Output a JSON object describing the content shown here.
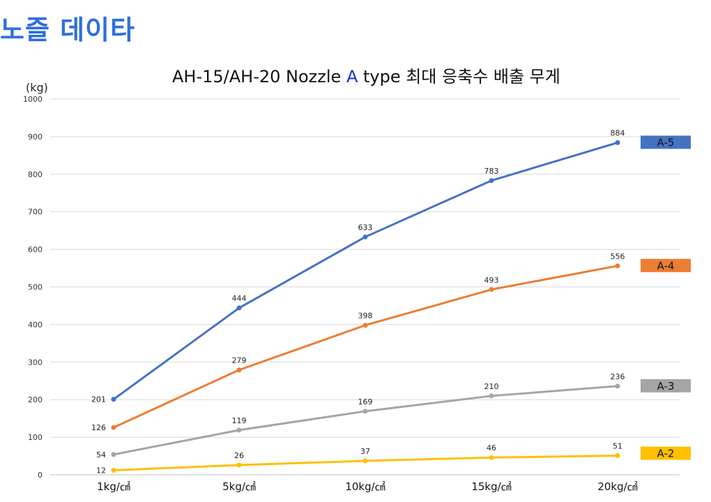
{
  "page": {
    "heading": "노즐 데이타"
  },
  "chart_data": {
    "type": "line",
    "title": {
      "prefix": "AH-15/AH-20  Nozzle ",
      "accent": "A",
      "suffix": " type 최대 응축수 배출 무게"
    },
    "ylabel": "(kg)",
    "xlabel": "",
    "ylim": [
      0,
      1000
    ],
    "yticks": [
      "0",
      "100",
      "200",
      "300",
      "400",
      "500",
      "600",
      "700",
      "800",
      "900",
      "1000"
    ],
    "categories": [
      "1kg/㎠",
      "5kg/㎠",
      "10kg/㎠",
      "15kg/㎠",
      "20kg/㎠"
    ],
    "grid": true,
    "legend_placement": "right, beside line ends",
    "series": [
      {
        "name": "A-5",
        "color": "#4472c4",
        "values": [
          201,
          444,
          633,
          783,
          884
        ]
      },
      {
        "name": "A-4",
        "color": "#ed7d31",
        "values": [
          126,
          279,
          398,
          493,
          556
        ]
      },
      {
        "name": "A-3",
        "color": "#a5a5a5",
        "values": [
          54,
          119,
          169,
          210,
          236
        ]
      },
      {
        "name": "A-2",
        "color": "#ffc000",
        "values": [
          12,
          26,
          37,
          46,
          51
        ]
      }
    ]
  }
}
